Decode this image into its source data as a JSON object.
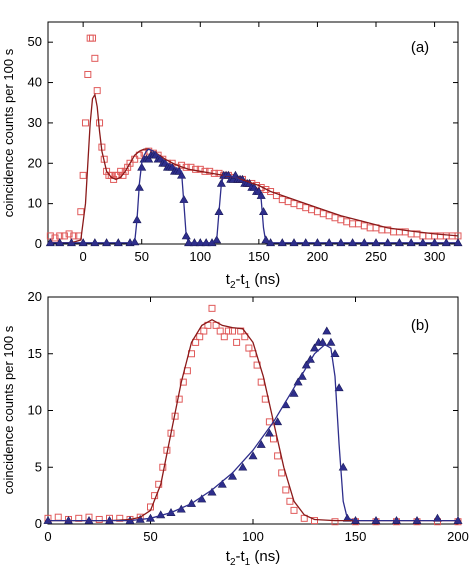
{
  "chart_data": [
    {
      "type": "scatter",
      "panel_label": "(a)",
      "xlabel": "t2-t1 (ns)",
      "ylabel": "coincidence counts per 100 s",
      "xlim": [
        -30,
        320
      ],
      "ylim": [
        0,
        55
      ],
      "xticks": [
        0,
        50,
        100,
        150,
        200,
        250,
        300
      ],
      "yticks": [
        0,
        10,
        20,
        30,
        40,
        50
      ],
      "grid": false,
      "series": [
        {
          "marker": "open-square",
          "color": "#e05a5a",
          "x": [
            -28,
            -24,
            -20,
            -16,
            -12,
            -8,
            -4,
            -2,
            0,
            2,
            4,
            6,
            8,
            10,
            12,
            14,
            16,
            18,
            20,
            22,
            24,
            26,
            28,
            30,
            32,
            34,
            36,
            38,
            40,
            44,
            48,
            52,
            56,
            60,
            64,
            68,
            72,
            76,
            80,
            84,
            88,
            92,
            96,
            100,
            104,
            108,
            112,
            116,
            120,
            124,
            128,
            132,
            136,
            140,
            144,
            148,
            152,
            156,
            160,
            165,
            170,
            175,
            180,
            185,
            190,
            195,
            200,
            205,
            210,
            215,
            220,
            225,
            230,
            235,
            240,
            245,
            250,
            255,
            260,
            265,
            270,
            275,
            280,
            285,
            290,
            295,
            300,
            305,
            310,
            315,
            320
          ],
          "y": [
            2,
            1.5,
            2,
            2,
            2.5,
            2,
            2,
            8,
            17,
            30,
            42,
            51,
            51,
            46,
            38,
            30,
            24,
            21,
            18,
            17,
            17,
            16,
            17,
            17,
            18,
            17,
            18,
            19,
            20,
            21,
            22,
            22.5,
            23,
            22.5,
            22,
            21,
            20,
            20,
            19,
            19.5,
            19,
            19,
            18.5,
            18.5,
            18,
            18,
            17.5,
            17.5,
            17,
            17,
            16.5,
            16,
            16,
            15,
            15,
            14.5,
            14,
            13.5,
            13,
            12,
            11,
            10.5,
            10,
            9.5,
            9,
            8.5,
            8,
            7.5,
            7,
            6.5,
            6,
            5.5,
            5,
            5,
            4.5,
            4,
            4,
            3.5,
            3.5,
            3,
            3,
            3,
            2.5,
            2.5,
            2,
            2,
            2,
            2,
            2,
            2,
            2
          ]
        },
        {
          "marker": "filled-triangle",
          "color": "#2e2e8c",
          "x": [
            -28,
            -20,
            -10,
            0,
            10,
            20,
            30,
            40,
            44,
            46,
            48,
            50,
            52,
            54,
            56,
            58,
            60,
            62,
            64,
            66,
            68,
            70,
            72,
            74,
            76,
            78,
            80,
            82,
            84,
            86,
            88,
            90,
            95,
            100,
            105,
            110,
            114,
            116,
            118,
            120,
            122,
            124,
            126,
            128,
            130,
            132,
            134,
            136,
            138,
            140,
            142,
            144,
            146,
            148,
            150,
            152,
            154,
            156,
            160,
            170,
            180,
            190,
            200,
            210,
            220,
            230,
            240,
            250,
            260,
            270,
            280,
            290,
            300,
            310,
            320
          ],
          "y": [
            0.3,
            0.3,
            0.3,
            0.3,
            0.3,
            0.3,
            0.3,
            0.3,
            0.5,
            6,
            14,
            19,
            21,
            21,
            21,
            22,
            22,
            22,
            21,
            21,
            20,
            20,
            19,
            19,
            19,
            18,
            18,
            18,
            17,
            11,
            2,
            0.3,
            0.3,
            0.3,
            0.3,
            0.3,
            1,
            8,
            15,
            17,
            17,
            17,
            16,
            16,
            17,
            16,
            16,
            16,
            15,
            15,
            15,
            14,
            14,
            13,
            13,
            12,
            8,
            1,
            0.3,
            0.3,
            0.3,
            0.3,
            0.3,
            0.3,
            0.3,
            0.3,
            0.3,
            0.3,
            0.3,
            0.3,
            0.3,
            0.3,
            0.3,
            0.3,
            0.3
          ]
        },
        {
          "marker": "line",
          "color": "#8b1a1a",
          "x": [
            -30,
            -10,
            -2,
            2,
            6,
            8,
            10,
            12,
            14,
            16,
            20,
            24,
            28,
            32,
            36,
            40,
            44,
            48,
            52,
            56,
            60,
            70,
            80,
            90,
            100,
            110,
            120,
            130,
            140,
            150,
            160,
            180,
            200,
            220,
            240,
            260,
            280,
            300,
            320
          ],
          "y": [
            0.3,
            0.3,
            1,
            10,
            30,
            36,
            37,
            34,
            28,
            23,
            18,
            16.5,
            16,
            16.5,
            18,
            20,
            22,
            23,
            23.5,
            23.5,
            23,
            21,
            19.5,
            18.5,
            18,
            17.5,
            17,
            16.5,
            15.5,
            14.5,
            13,
            11,
            9,
            7,
            5.5,
            4,
            3.2,
            2.5,
            2
          ]
        },
        {
          "marker": "line",
          "color": "#2e2e8c",
          "x": [
            -30,
            40,
            44,
            46,
            48,
            50,
            52,
            54,
            56,
            60,
            66,
            72,
            78,
            84,
            86,
            88,
            90,
            110,
            114,
            116,
            118,
            120,
            124,
            130,
            136,
            142,
            148,
            152,
            154,
            156,
            320
          ],
          "y": [
            0.3,
            0.3,
            0.5,
            6,
            15,
            20,
            22,
            23,
            23.5,
            23,
            21.5,
            20,
            19,
            18,
            10,
            2,
            0.3,
            0.3,
            1,
            8,
            15,
            17,
            17,
            16.5,
            15.5,
            14.5,
            13,
            11,
            4,
            0.3,
            0.3
          ]
        }
      ]
    },
    {
      "type": "scatter",
      "panel_label": "(b)",
      "xlabel": "t2-t1 (ns)",
      "ylabel": "coincidence counts per 100 s",
      "xlim": [
        0,
        200
      ],
      "ylim": [
        0,
        20
      ],
      "xticks": [
        0,
        50,
        100,
        150,
        200
      ],
      "yticks": [
        0,
        5,
        10,
        15,
        20
      ],
      "grid": false,
      "series": [
        {
          "marker": "open-square",
          "color": "#e05a5a",
          "x": [
            0,
            5,
            10,
            15,
            20,
            25,
            30,
            35,
            40,
            45,
            50,
            52,
            54,
            56,
            58,
            60,
            62,
            64,
            66,
            68,
            70,
            72,
            74,
            76,
            78,
            80,
            82,
            84,
            86,
            88,
            90,
            92,
            94,
            96,
            98,
            100,
            102,
            104,
            106,
            108,
            110,
            112,
            114,
            116,
            118,
            120,
            125,
            130,
            140,
            150,
            160,
            170,
            180,
            190,
            200
          ],
          "y": [
            0.5,
            0.6,
            0.4,
            0.5,
            0.6,
            0.4,
            0.5,
            0.5,
            0.4,
            0.6,
            1.5,
            2.5,
            3.5,
            5,
            6.5,
            8,
            9.5,
            11,
            12.5,
            13.5,
            15,
            16,
            16.5,
            17,
            17.5,
            19,
            17.5,
            17,
            16.5,
            17,
            17,
            16,
            17,
            16.5,
            15.5,
            15,
            14,
            12.5,
            11,
            9,
            7.5,
            6,
            4.5,
            3,
            2,
            1.2,
            0.5,
            0.3,
            0.2,
            0.2,
            0.2,
            0.2,
            0.2,
            0.2,
            0.2
          ]
        },
        {
          "marker": "filled-triangle",
          "color": "#2e2e8c",
          "x": [
            0,
            10,
            20,
            30,
            40,
            45,
            50,
            55,
            60,
            65,
            70,
            75,
            80,
            85,
            90,
            95,
            100,
            104,
            108,
            112,
            116,
            120,
            122,
            124,
            126,
            128,
            130,
            132,
            134,
            136,
            138,
            140,
            142,
            144,
            146,
            150,
            160,
            170,
            180,
            190,
            200
          ],
          "y": [
            0.3,
            0.3,
            0.3,
            0.3,
            0.3,
            0.4,
            0.5,
            0.8,
            1,
            1.3,
            1.8,
            2.2,
            2.8,
            3.5,
            4.2,
            5,
            6,
            7,
            8,
            9,
            10.5,
            11.5,
            12.5,
            13,
            14,
            14.5,
            15.5,
            16,
            16,
            17,
            16,
            15,
            12,
            5,
            0.5,
            0.3,
            0.3,
            0.3,
            0.3,
            0.5,
            0.3
          ]
        },
        {
          "marker": "line",
          "color": "#8b1a1a",
          "x": [
            0,
            30,
            40,
            45,
            50,
            55,
            60,
            65,
            70,
            75,
            80,
            85,
            90,
            95,
            100,
            105,
            110,
            115,
            120,
            125,
            130,
            140,
            200
          ],
          "y": [
            0.3,
            0.3,
            0.4,
            0.6,
            1.2,
            3.5,
            8,
            12.5,
            16,
            17.5,
            18,
            17.5,
            17.3,
            17.2,
            16,
            13,
            9,
            5,
            2,
            0.8,
            0.4,
            0.3,
            0.3
          ]
        },
        {
          "marker": "line",
          "color": "#2e2e8c",
          "x": [
            0,
            40,
            50,
            60,
            70,
            80,
            90,
            100,
            110,
            120,
            125,
            130,
            135,
            138,
            140,
            142,
            144,
            146,
            150,
            200
          ],
          "y": [
            0.3,
            0.3,
            0.5,
            1,
            1.8,
            3,
            4.5,
            6.5,
            9,
            12,
            13.5,
            15,
            15.8,
            15.5,
            13,
            7,
            2,
            0.5,
            0.3,
            0.3
          ]
        }
      ]
    }
  ]
}
